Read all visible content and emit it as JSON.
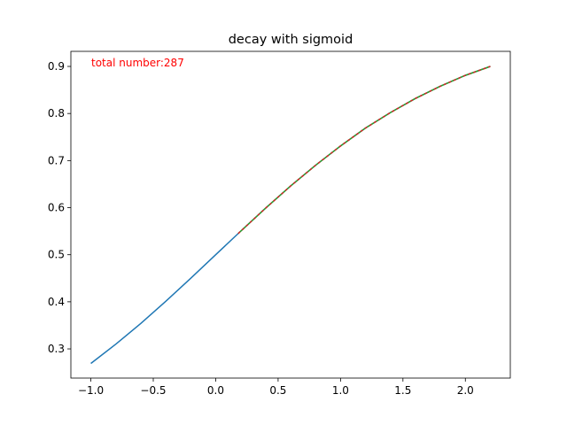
{
  "chart_data": {
    "type": "line",
    "title": "decay with sigmoid",
    "xlabel": "",
    "ylabel": "",
    "xlim": [
      -1.16,
      2.36
    ],
    "ylim": [
      0.238,
      0.932
    ],
    "grid": false,
    "x_ticks": [
      -1.0,
      -0.5,
      0.0,
      0.5,
      1.0,
      1.5,
      2.0
    ],
    "x_tick_labels": [
      "−1.0",
      "−0.5",
      "0.0",
      "0.5",
      "1.0",
      "1.5",
      "2.0"
    ],
    "y_ticks": [
      0.3,
      0.4,
      0.5,
      0.6,
      0.7,
      0.8,
      0.9
    ],
    "y_tick_labels": [
      "0.3",
      "0.4",
      "0.5",
      "0.6",
      "0.7",
      "0.8",
      "0.9"
    ],
    "annotation": {
      "text": "total number:287",
      "color": "#ff0000"
    },
    "series": [
      {
        "style": "solid",
        "color": "#1f77b4",
        "x": [
          -1.0,
          -0.8,
          -0.6,
          -0.4,
          -0.2,
          0.0,
          0.2,
          0.4,
          0.6,
          0.8,
          1.0,
          1.2,
          1.4,
          1.6,
          1.8,
          2.0,
          2.2
        ],
        "y": [
          0.269,
          0.31,
          0.354,
          0.401,
          0.45,
          0.5,
          0.55,
          0.599,
          0.646,
          0.69,
          0.731,
          0.769,
          0.802,
          0.832,
          0.858,
          0.881,
          0.9
        ]
      },
      {
        "style": "dashed",
        "color": "#2ca02c",
        "dash_color": "#d62728",
        "x": [
          0.18,
          0.4,
          0.6,
          0.8,
          1.0,
          1.2,
          1.4,
          1.6,
          1.8,
          2.0,
          2.2
        ],
        "y": [
          0.545,
          0.599,
          0.646,
          0.69,
          0.731,
          0.769,
          0.802,
          0.832,
          0.858,
          0.881,
          0.9
        ]
      }
    ]
  }
}
